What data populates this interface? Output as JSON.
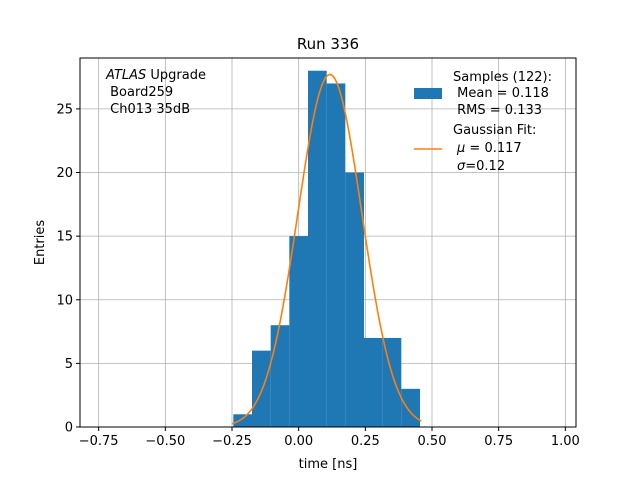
{
  "chart_data": {
    "type": "bar",
    "title": "Run 336",
    "xlabel": "time [ns]",
    "ylabel": "Entries",
    "xlim": [
      -0.82,
      1.04
    ],
    "ylim": [
      0,
      29
    ],
    "xticks": [
      -0.75,
      -0.5,
      -0.25,
      0.0,
      0.25,
      0.5,
      0.75,
      1.0
    ],
    "xtick_labels": [
      "−0.75",
      "−0.50",
      "−0.25",
      "0.00",
      "0.25",
      "0.50",
      "0.75",
      "1.00"
    ],
    "yticks": [
      0,
      5,
      10,
      15,
      20,
      25
    ],
    "grid": true,
    "bin_edges": [
      -0.245,
      -0.175,
      -0.105,
      -0.035,
      0.035,
      0.105,
      0.175,
      0.245,
      0.315,
      0.385,
      0.455
    ],
    "bin_counts": [
      1,
      6,
      8,
      15,
      28,
      27,
      20,
      7,
      7,
      3
    ],
    "hist_color": "#1f77b4",
    "fit": {
      "mu": 0.117,
      "sigma": 0.12,
      "amplitude": 27.7,
      "x_range": [
        -0.25,
        0.46
      ],
      "color": "#ff7f0e"
    },
    "annotation": {
      "italic": "ATLAS",
      "rest": " Upgrade",
      "line2": " Board259",
      "line3": " Ch013 35dB"
    },
    "legend": {
      "position": "top-right",
      "samples": {
        "line1": "Samples (122):",
        "line2": " Mean = 0.118",
        "line3": " RMS = 0.133"
      },
      "fit": {
        "line1": "Gaussian Fit:",
        "line2_sym": "μ",
        "line2_rest": " = 0.117",
        "line3_sym": "σ",
        "line3_rest": "=0.12"
      }
    }
  }
}
